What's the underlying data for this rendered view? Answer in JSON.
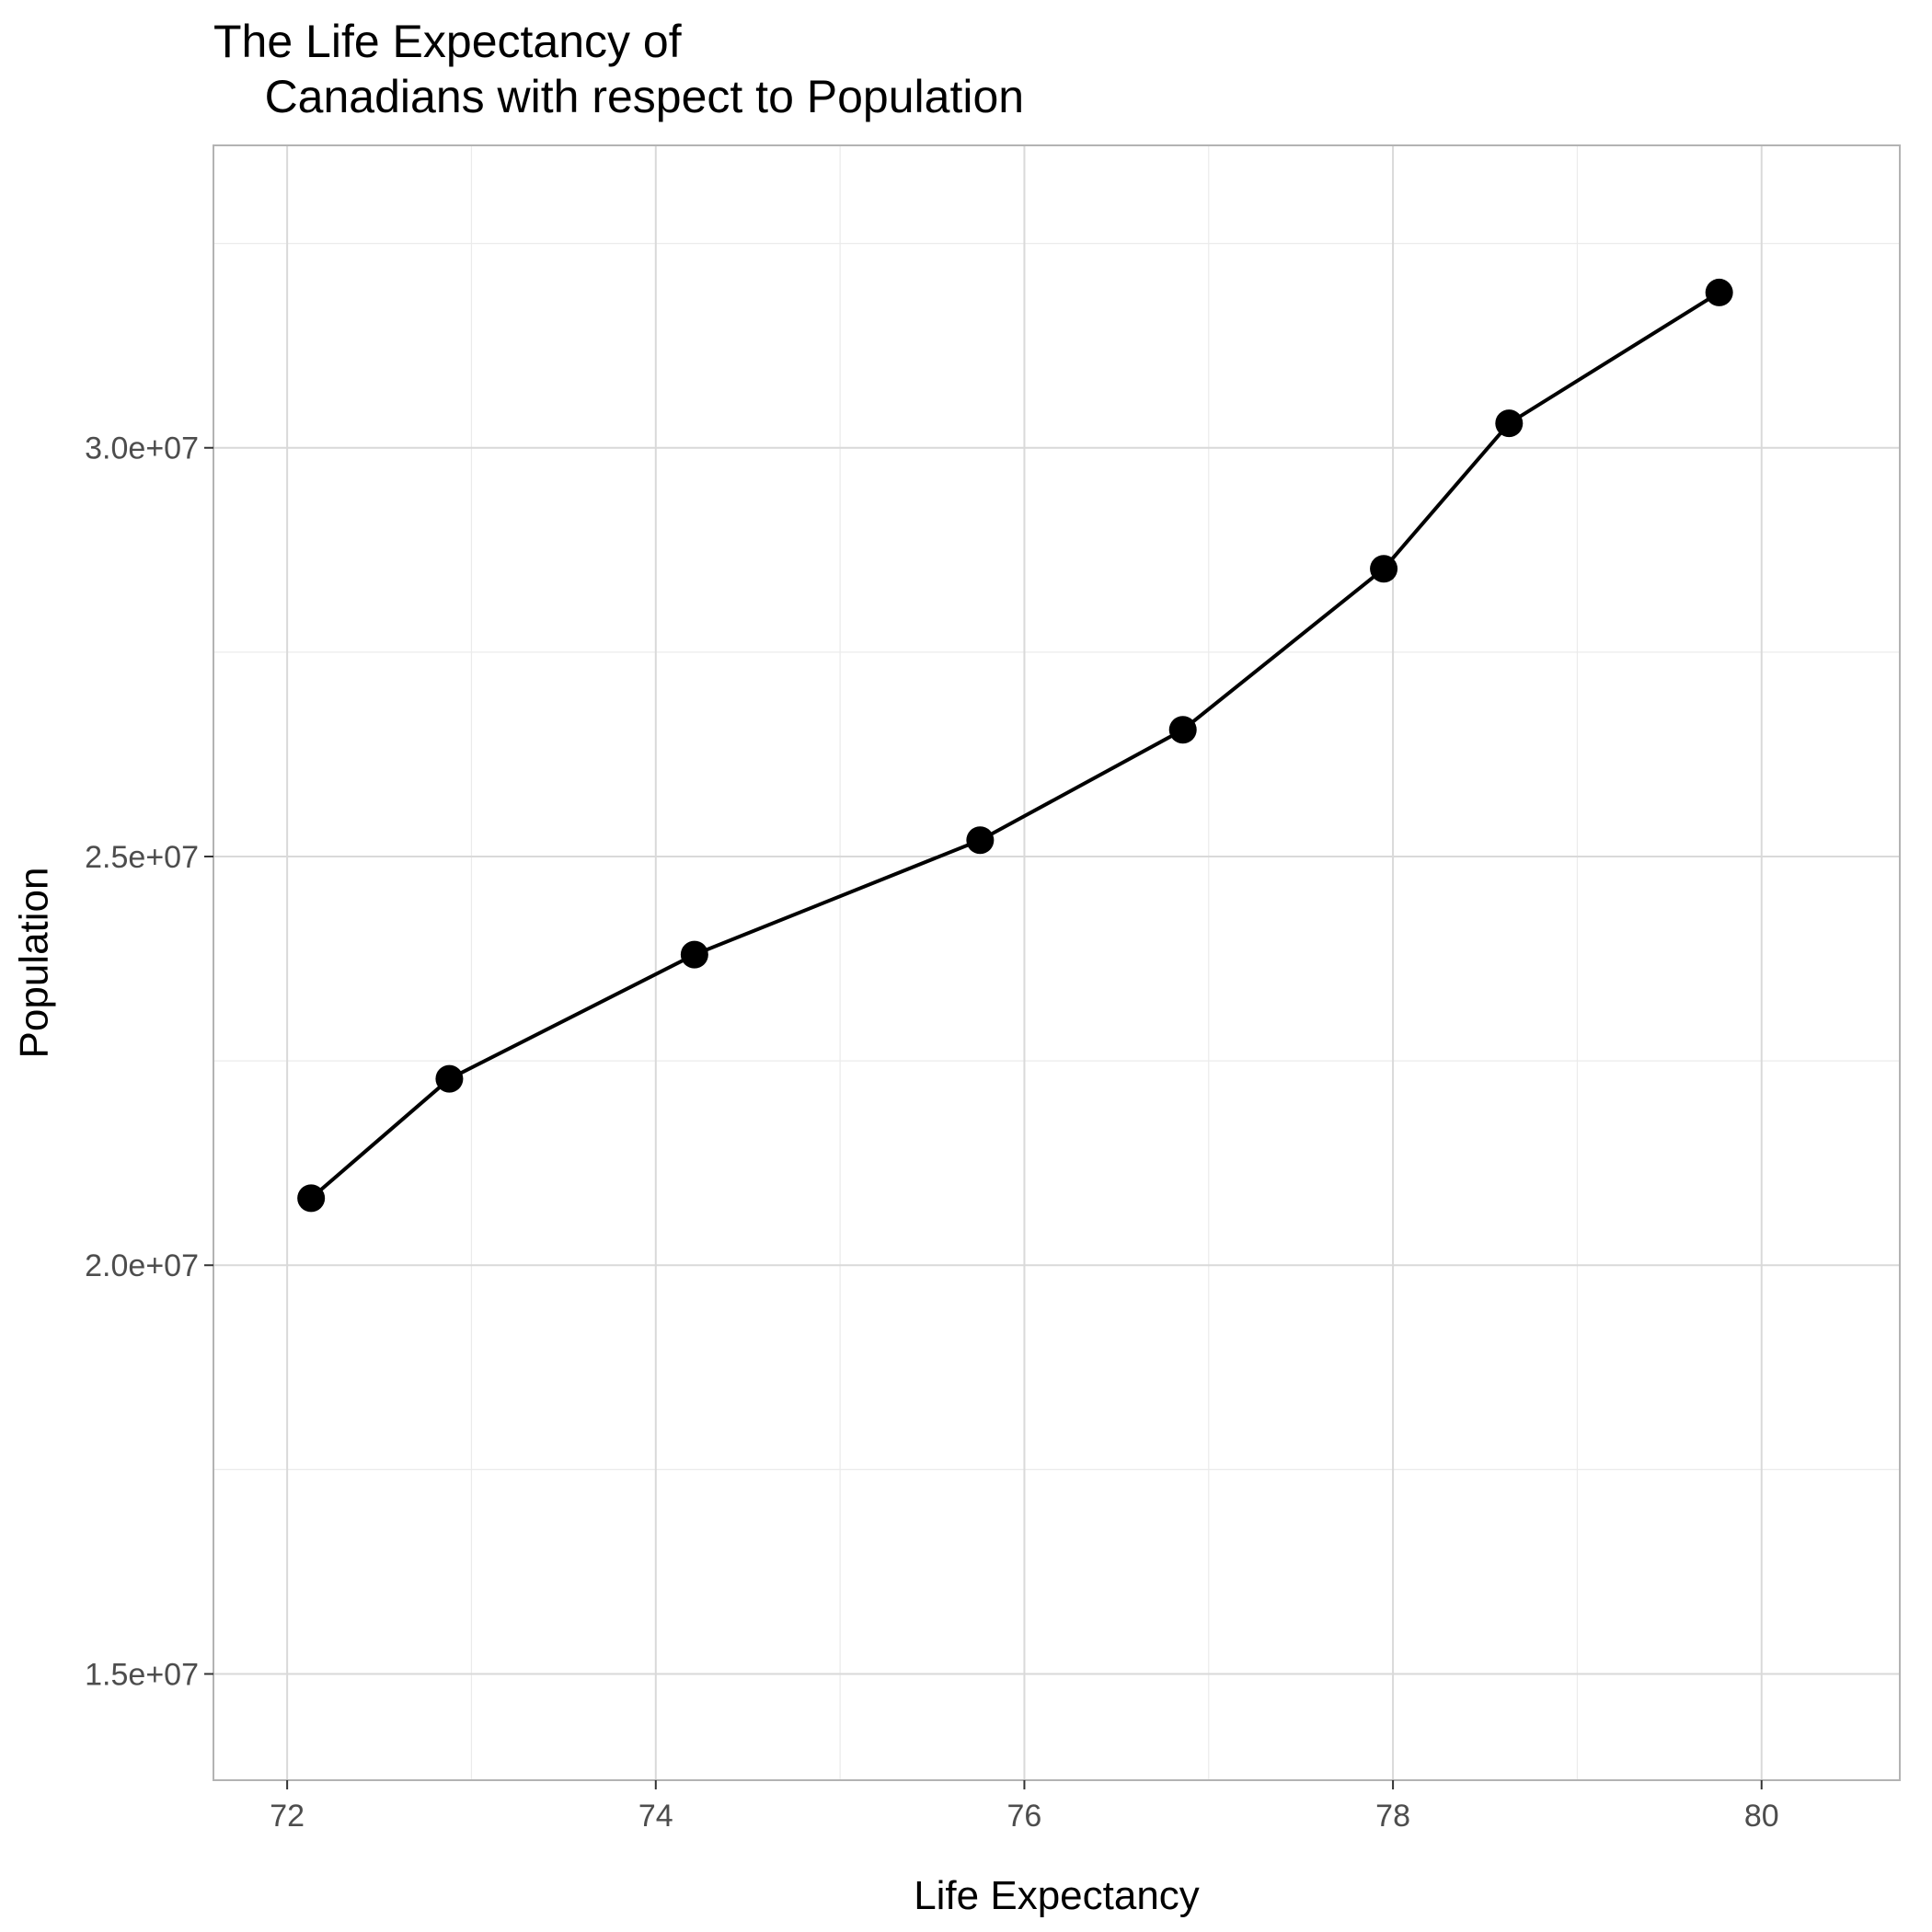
{
  "chart_data": {
    "type": "line",
    "title": "The Life Expectancy of\n    Canadians with respect to Population",
    "xlabel": "Life Expectancy",
    "ylabel": "Population",
    "xlim": [
      71.6,
      80.75
    ],
    "ylim": [
      13700000,
      33700000
    ],
    "x_ticks": [
      72,
      74,
      76,
      78,
      80
    ],
    "x_tick_labels": [
      "72",
      "74",
      "76",
      "78",
      "80"
    ],
    "y_ticks": [
      15000000,
      20000000,
      25000000,
      30000000
    ],
    "y_tick_labels": [
      "1.5e+07",
      "2.0e+07",
      "2.5e+07",
      "3.0e+07"
    ],
    "grid": true,
    "points": [
      {
        "x": 72.13,
        "y": 20820000
      },
      {
        "x": 72.88,
        "y": 22280000
      },
      {
        "x": 74.21,
        "y": 23800000
      },
      {
        "x": 75.76,
        "y": 25200000
      },
      {
        "x": 76.86,
        "y": 26550000
      },
      {
        "x": 77.95,
        "y": 28520000
      },
      {
        "x": 78.63,
        "y": 30300000
      },
      {
        "x": 79.77,
        "y": 31900000
      }
    ],
    "colors": {
      "line": "#000000",
      "point": "#000000",
      "grid_major": "#d9d9d9",
      "grid_minor": "#ebebeb",
      "panel_border": "#b3b3b3",
      "tick_label": "#4d4d4d"
    }
  }
}
